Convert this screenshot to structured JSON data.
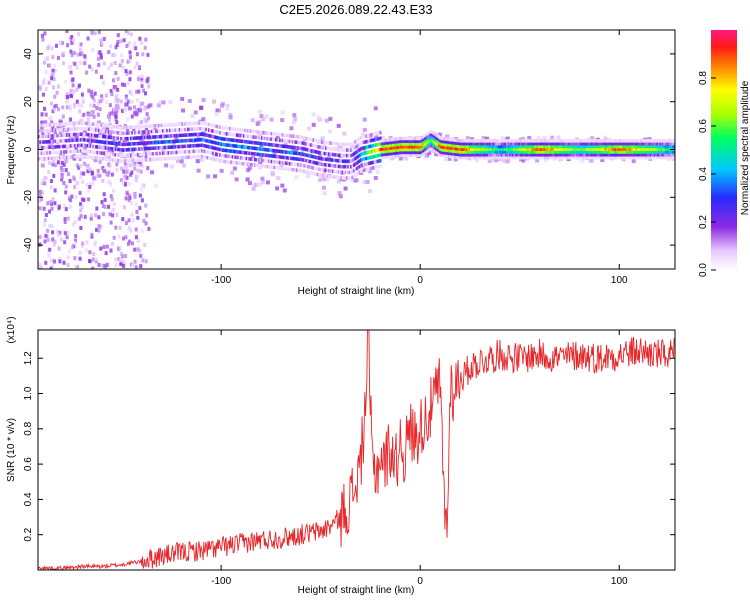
{
  "title": "C2E5.2026.089.22.43.E33",
  "colors": {
    "snr_line": "#e8262a",
    "axis": "#000000"
  },
  "chart_data": [
    {
      "type": "heatmap",
      "xlabel": "Height of straight line (km)",
      "ylabel": "Frequency (Hz)",
      "xlim": [
        -192,
        128
      ],
      "ylim": [
        -50,
        50
      ],
      "xticks": [
        "-100",
        "0",
        "100"
      ],
      "xtick_values": [
        -100,
        0,
        100
      ],
      "yticks": [
        "40",
        "20",
        "0",
        "-20",
        "-40"
      ],
      "ytick_values": [
        40,
        20,
        0,
        -20,
        -40
      ],
      "colorbar": {
        "label": "Normalized spectral amplitude",
        "range": [
          0,
          1
        ],
        "ticks": [
          "0.0",
          "0.2",
          "0.4",
          "0.6",
          "0.8"
        ],
        "tick_values": [
          0.0,
          0.2,
          0.4,
          0.6,
          0.8
        ],
        "colormap": "rainbow"
      },
      "ridge": {
        "x": [
          -190,
          -170,
          -150,
          -130,
          -110,
          -100,
          -90,
          -80,
          -70,
          -60,
          -50,
          -40,
          -35,
          -30,
          -20,
          -10,
          0,
          5,
          10,
          20,
          40,
          60,
          80,
          100,
          128
        ],
        "freq": [
          3,
          4,
          2,
          3,
          4,
          2,
          1,
          0,
          -1,
          -2,
          -4,
          -5,
          -5,
          -2,
          0,
          1,
          1,
          4,
          1,
          0,
          0,
          0,
          0,
          0,
          0
        ],
        "peak_amplitude": [
          0.15,
          0.2,
          0.25,
          0.3,
          0.3,
          0.35,
          0.35,
          0.35,
          0.3,
          0.3,
          0.25,
          0.2,
          0.2,
          0.4,
          0.9,
          0.9,
          0.9,
          0.6,
          0.9,
          0.9,
          0.5,
          0.9,
          0.6,
          0.9,
          0.5
        ]
      }
    },
    {
      "type": "line",
      "xlabel": "Height of straight line (km)",
      "ylabel": "SNR (10 * v/v)",
      "multiplier": "(x10⁴)",
      "xlim": [
        -192,
        128
      ],
      "ylim": [
        0,
        1.36
      ],
      "xticks": [
        "-100",
        "0",
        "100"
      ],
      "xtick_values": [
        -100,
        0,
        100
      ],
      "yticks": [
        "0.2",
        "0.4",
        "0.6",
        "0.8",
        "1.0",
        "1.2"
      ],
      "ytick_values": [
        0.2,
        0.4,
        0.6,
        0.8,
        1.0,
        1.2
      ],
      "series": [
        {
          "x": [
            -192,
            -180,
            -170,
            -160,
            -150,
            -140,
            -130,
            -120,
            -110,
            -100,
            -90,
            -80,
            -70,
            -60,
            -50,
            -45,
            -40,
            -35,
            -32,
            -30,
            -28,
            -26,
            -25,
            -24,
            -22,
            -20,
            -18,
            -15,
            -12,
            -10,
            -8,
            -5,
            -3,
            0,
            2,
            5,
            8,
            10,
            12,
            13,
            14,
            15,
            16,
            18,
            20,
            22,
            25,
            30,
            35,
            40,
            50,
            60,
            70,
            80,
            90,
            100,
            110,
            120,
            128
          ],
          "y": [
            0.01,
            0.01,
            0.02,
            0.02,
            0.03,
            0.05,
            0.08,
            0.1,
            0.11,
            0.13,
            0.15,
            0.17,
            0.18,
            0.2,
            0.22,
            0.25,
            0.3,
            0.4,
            0.5,
            0.6,
            0.85,
            1.32,
            0.9,
            0.6,
            0.55,
            0.65,
            0.6,
            0.7,
            0.6,
            0.75,
            0.65,
            0.8,
            0.75,
            0.8,
            0.85,
            0.9,
            1.0,
            1.05,
            0.4,
            0.25,
            0.35,
            1.1,
            1.0,
            1.05,
            1.1,
            1.1,
            1.15,
            1.18,
            1.2,
            1.22,
            1.2,
            1.22,
            1.2,
            1.22,
            1.2,
            1.22,
            1.24,
            1.22,
            1.22
          ]
        }
      ]
    }
  ]
}
